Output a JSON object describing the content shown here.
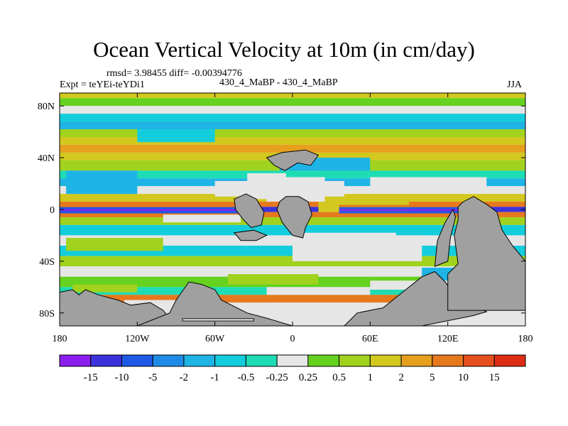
{
  "chart_data": {
    "type": "heatmap",
    "title": "Ocean Vertical Velocity at 10m (in cm/day)",
    "stats": "rmsd= 3.98455 diff= -0.00394776",
    "experiment": "Expt = teYEi-teYDi1",
    "comparison": "430_4_MaBP - 430_4_MaBP",
    "season": "JJA",
    "x_ticks": [
      "180",
      "120W",
      "60W",
      "0",
      "60E",
      "120E",
      "180"
    ],
    "x_tick_values": [
      -180,
      -120,
      -60,
      0,
      60,
      120,
      180
    ],
    "y_ticks": [
      "80N",
      "40N",
      "0",
      "40S",
      "80S"
    ],
    "y_tick_values": [
      80,
      40,
      0,
      -40,
      -80
    ],
    "xlim": [
      -180,
      180
    ],
    "ylim": [
      -90,
      90
    ],
    "colorbar": {
      "levels": [
        "-15",
        "-10",
        "-5",
        "-2",
        "-1",
        "-0.5",
        "-0.25",
        "0.25",
        "0.5",
        "1",
        "2",
        "5",
        "10",
        "15"
      ],
      "colors": [
        "#8c1ef0",
        "#3c32dc",
        "#1e5ae6",
        "#1e8ce6",
        "#1eb4e6",
        "#14cddc",
        "#1edcb4",
        "#e6e6e6",
        "#64d21e",
        "#a0d21e",
        "#d2c81e",
        "#e6a01e",
        "#e6781e",
        "#e6501e",
        "#dc2d14"
      ]
    },
    "land_color": "#a0a0a0"
  }
}
